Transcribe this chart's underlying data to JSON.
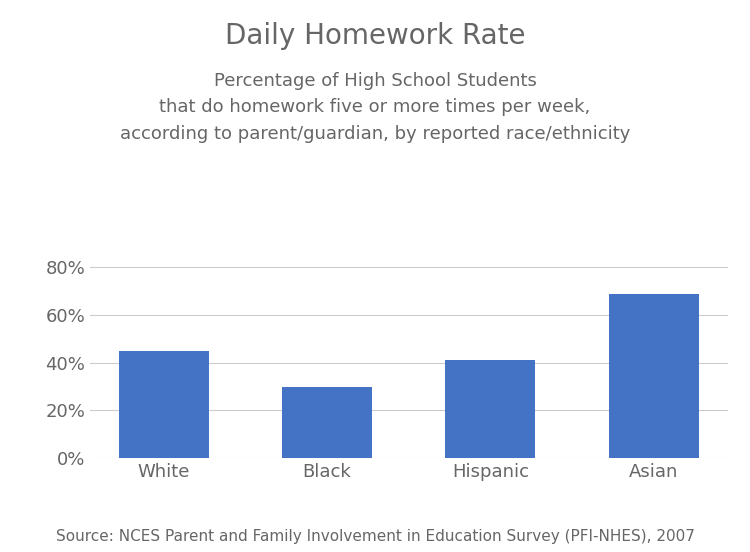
{
  "title": "Daily Homework Rate",
  "subtitle": "Percentage of High School Students\nthat do homework five or more times per week,\naccording to parent/guardian, by reported race/ethnicity",
  "categories": [
    "White",
    "Black",
    "Hispanic",
    "Asian"
  ],
  "values": [
    0.45,
    0.3,
    0.41,
    0.69
  ],
  "bar_color": "#4472C4",
  "ylim": [
    0,
    0.88
  ],
  "yticks": [
    0.0,
    0.2,
    0.4,
    0.6,
    0.8
  ],
  "ytick_labels": [
    "0%",
    "20%",
    "40%",
    "60%",
    "80%"
  ],
  "source_text": "Source: NCES Parent and Family Involvement in Education Survey (PFI-NHES), 2007",
  "title_fontsize": 20,
  "subtitle_fontsize": 13,
  "tick_fontsize": 13,
  "source_fontsize": 11,
  "background_color": "#ffffff",
  "grid_color": "#cccccc",
  "text_color": "#666666"
}
